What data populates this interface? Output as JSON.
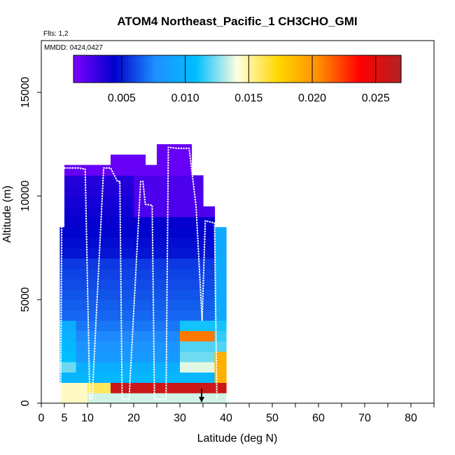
{
  "chart_data": {
    "type": "heatmap",
    "title": "ATOM4 Northeast_Pacific_1 CH3CHO_GMI",
    "subtitle_flights": "Flts: 1,2",
    "subtitle_dates": "MMDD: 0424,0427",
    "xlabel": "Latitude (deg N)",
    "ylabel": "Altitude (m)",
    "xlim": [
      0,
      85
    ],
    "ylim": [
      0,
      17500
    ],
    "x_ticks": [
      0,
      5,
      10,
      20,
      30,
      40,
      50,
      60,
      70,
      80
    ],
    "x_ticks_unlabeled": [
      15,
      25,
      35,
      45,
      55,
      65,
      75,
      85
    ],
    "y_ticks": [
      0,
      5000,
      10000,
      15000
    ],
    "colorbar": {
      "range": [
        0.0012,
        0.027
      ],
      "ticks": [
        "0.005",
        "0.010",
        "0.015",
        "0.020",
        "0.025"
      ],
      "tick_values": [
        0.005,
        0.01,
        0.015,
        0.02,
        0.025
      ],
      "colors": [
        "#7f00ff",
        "#0000cd",
        "#1e90ff",
        "#00bfff",
        "#ffffe0",
        "#ffd700",
        "#ff8c00",
        "#ff0000",
        "#b22222"
      ]
    },
    "marker": {
      "latitude": 34.7,
      "altitude": 700,
      "direction": "down"
    },
    "flight_track": {
      "latitude": [
        4.2,
        4.5,
        5.0,
        6.5,
        8.0,
        9.5,
        10.5,
        11.0,
        13.5,
        15.0,
        16.5,
        17.0,
        17.5,
        19.0,
        21.5,
        22.0,
        22.5,
        24.0,
        24.5,
        27.0,
        27.5,
        29.5,
        32.0,
        33.5,
        34.8,
        35.5,
        37.5,
        38.0
      ],
      "altitude": [
        200,
        11350,
        11350,
        11350,
        11350,
        11300,
        200,
        200,
        11350,
        11350,
        10700,
        10700,
        200,
        200,
        10700,
        10700,
        9600,
        9550,
        200,
        200,
        12350,
        12300,
        12300,
        9500,
        4000,
        8800,
        8700,
        200
      ]
    },
    "grid_latitude": [
      4.0,
      5.0,
      7.5,
      10.0,
      12.5,
      15.0,
      17.5,
      20.0,
      22.5,
      25.0,
      27.5,
      30.0,
      32.5,
      35.0,
      37.5,
      40.0
    ],
    "grid_altitude": [
      0,
      500,
      1000,
      1500,
      2000,
      2500,
      3000,
      3500,
      4000,
      4500,
      5000,
      5500,
      6000,
      6500,
      7000,
      7500,
      8000,
      8500,
      9000,
      9500,
      10000,
      10500,
      11000,
      11500,
      12000,
      12500
    ]
  }
}
